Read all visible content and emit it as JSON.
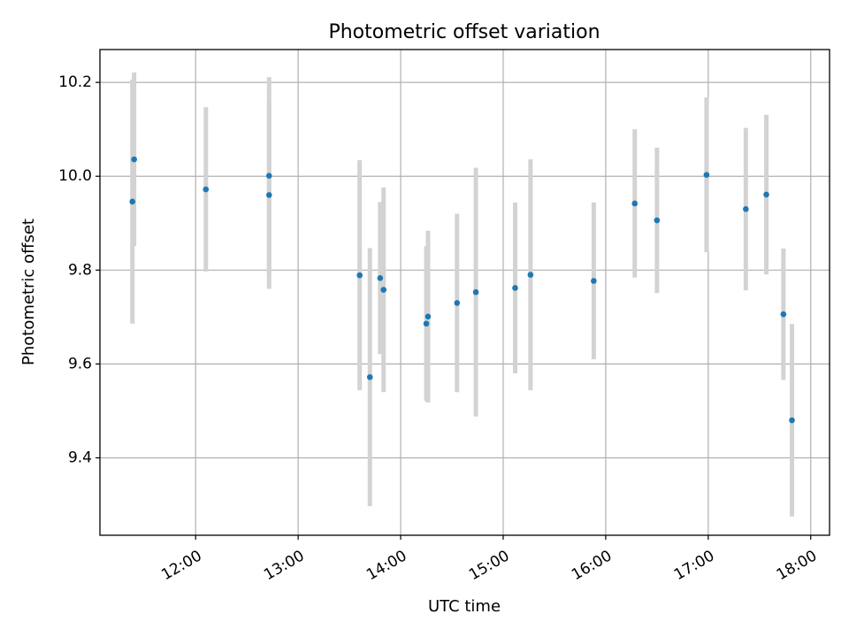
{
  "chart_data": {
    "type": "scatter",
    "title": "Photometric offset variation",
    "xlabel": "UTC time",
    "ylabel": "Photometric offset",
    "x_tick_labels": [
      "12:00",
      "13:00",
      "14:00",
      "15:00",
      "16:00",
      "17:00",
      "18:00"
    ],
    "y_tick_labels": [
      "9.4",
      "9.6",
      "9.8",
      "10.0",
      "10.2"
    ],
    "x_tick_values": [
      "12:00",
      "13:00",
      "14:00",
      "15:00",
      "16:00",
      "17:00",
      "18:00"
    ],
    "y_tick_values": [
      9.4,
      9.6,
      9.8,
      10.0,
      10.2
    ],
    "xlim": [
      "11:04",
      "18:11"
    ],
    "ylim": [
      9.235,
      10.27
    ],
    "grid": true,
    "marker_color": "#1f77b4",
    "errorbar_color": "#d3d3d3",
    "points": [
      {
        "x": "11:23",
        "y": 9.946,
        "yerr": 0.26
      },
      {
        "x": "11:24",
        "y": 10.036,
        "yerr": 0.185
      },
      {
        "x": "12:06",
        "y": 9.972,
        "yerr": 0.175
      },
      {
        "x": "12:43",
        "y": 9.96,
        "yerr": 0.2
      },
      {
        "x": "12:43",
        "y": 10.001,
        "yerr": 0.21
      },
      {
        "x": "13:36",
        "y": 9.789,
        "yerr": 0.245
      },
      {
        "x": "13:42",
        "y": 9.572,
        "yerr": 0.275
      },
      {
        "x": "13:48",
        "y": 9.783,
        "yerr": 0.162
      },
      {
        "x": "13:50",
        "y": 9.758,
        "yerr": 0.218
      },
      {
        "x": "14:15",
        "y": 9.686,
        "yerr": 0.165
      },
      {
        "x": "14:16",
        "y": 9.701,
        "yerr": 0.183
      },
      {
        "x": "14:33",
        "y": 9.73,
        "yerr": 0.19
      },
      {
        "x": "14:44",
        "y": 9.753,
        "yerr": 0.265
      },
      {
        "x": "15:07",
        "y": 9.762,
        "yerr": 0.182
      },
      {
        "x": "15:16",
        "y": 9.79,
        "yerr": 0.246
      },
      {
        "x": "15:53",
        "y": 9.777,
        "yerr": 0.167
      },
      {
        "x": "16:17",
        "y": 9.942,
        "yerr": 0.158
      },
      {
        "x": "16:30",
        "y": 9.906,
        "yerr": 0.155
      },
      {
        "x": "16:59",
        "y": 10.003,
        "yerr": 0.165
      },
      {
        "x": "17:22",
        "y": 9.93,
        "yerr": 0.173
      },
      {
        "x": "17:34",
        "y": 9.961,
        "yerr": 0.17
      },
      {
        "x": "17:44",
        "y": 9.706,
        "yerr": 0.14
      },
      {
        "x": "17:49",
        "y": 9.48,
        "yerr": 0.205
      }
    ]
  }
}
